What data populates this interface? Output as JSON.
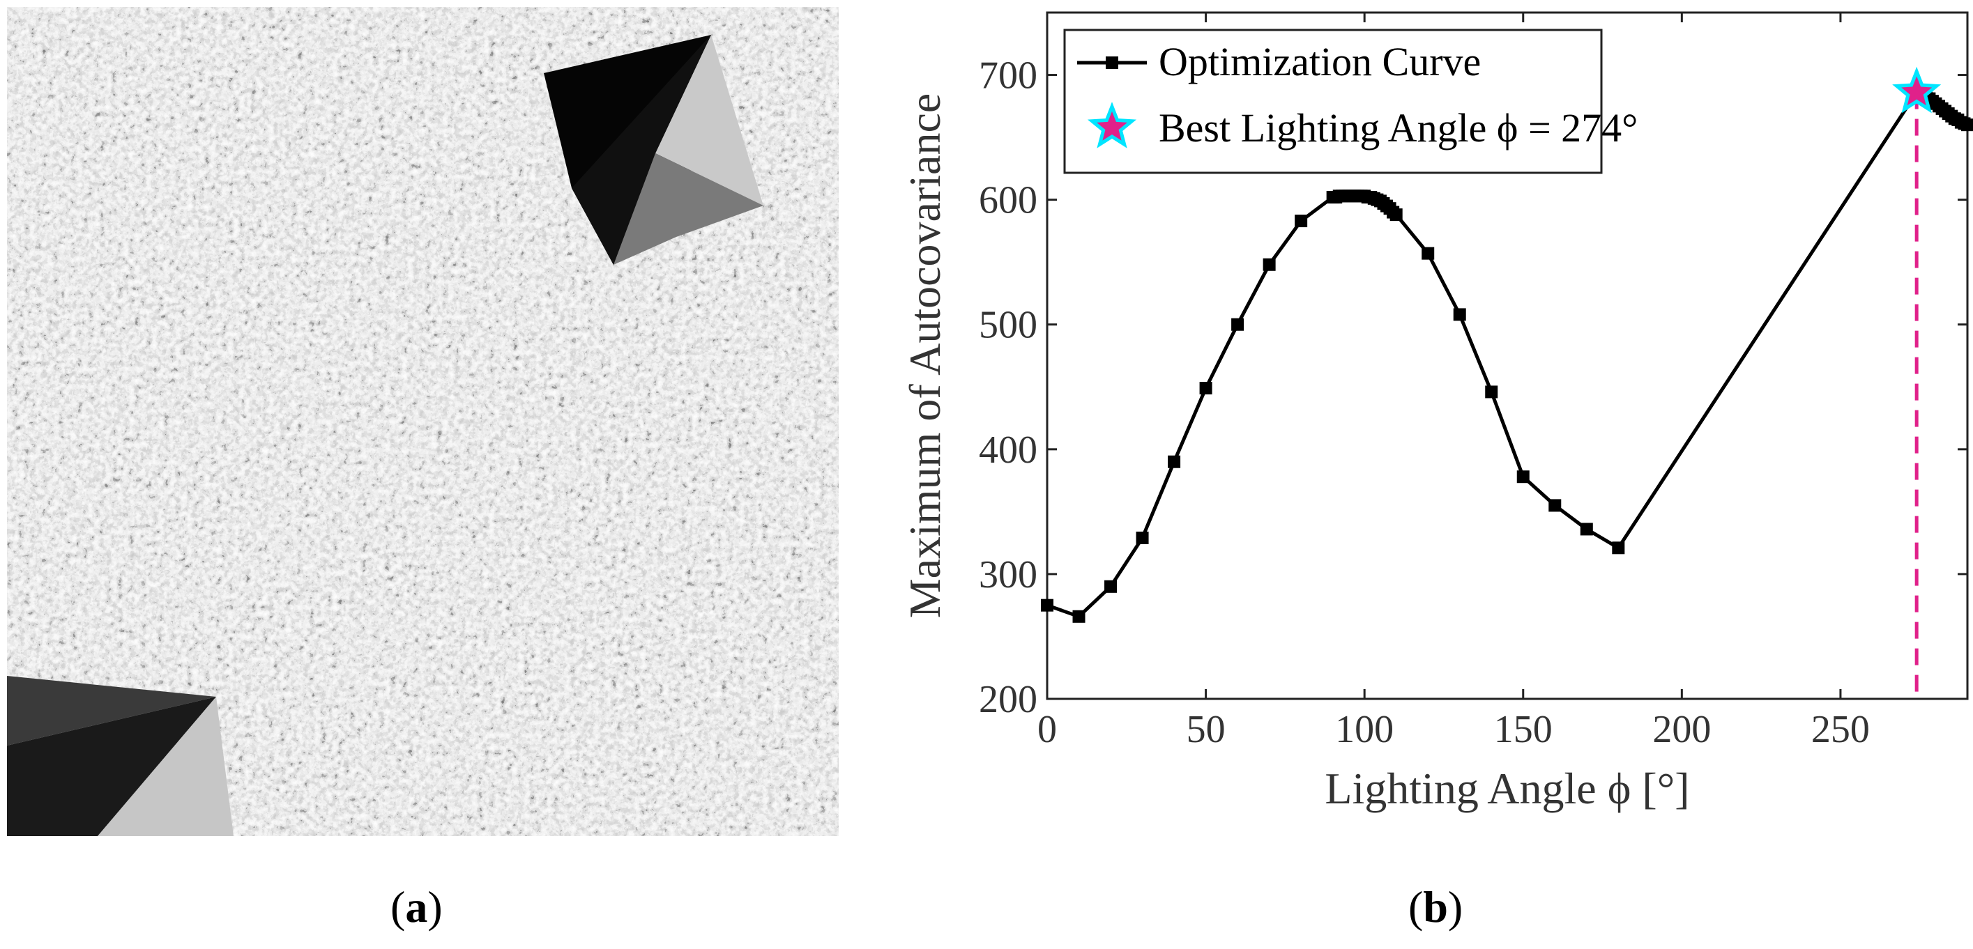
{
  "panel_a": {
    "description_icon": "textured-surface-with-pyramids"
  },
  "captions": {
    "a": "a",
    "b": "b"
  },
  "chart_data": {
    "type": "line",
    "xlabel": "Lighting Angle ϕ [°]",
    "ylabel": "Maximum of Autocovariance",
    "xlim": [
      0,
      290
    ],
    "ylim": [
      200,
      750
    ],
    "xticks": [
      0,
      50,
      100,
      150,
      200,
      250
    ],
    "yticks": [
      200,
      300,
      400,
      500,
      600,
      700
    ],
    "grid": false,
    "legend_position": "top-left",
    "series": [
      {
        "name": "Optimization Curve",
        "color": "#000000",
        "marker": "square",
        "x": [
          0,
          10,
          20,
          30,
          40,
          50,
          60,
          70,
          80,
          90,
          91,
          92,
          93,
          94,
          95,
          96,
          97,
          98,
          99,
          100,
          101,
          102,
          103,
          104,
          105,
          106,
          107,
          108,
          109,
          110,
          120,
          130,
          140,
          150,
          160,
          170,
          180,
          274,
          275,
          276,
          277,
          278,
          279,
          280,
          281,
          282,
          283,
          284,
          285,
          286,
          287,
          288,
          289,
          290
        ],
        "y": [
          275,
          266,
          290,
          329,
          390,
          449,
          500,
          548,
          583,
          602,
          602,
          603,
          603,
          603,
          603,
          603,
          603,
          603,
          603,
          603,
          602,
          602,
          601,
          600,
          599,
          597,
          595,
          593,
          590,
          588,
          557,
          508,
          446,
          378,
          355,
          336,
          321,
          686,
          685,
          684,
          682,
          681,
          679,
          677,
          675,
          673,
          671,
          669,
          667,
          665,
          664,
          662,
          661,
          660
        ]
      }
    ],
    "annotations": [
      {
        "name": "Best Lighting Angle ϕ = 274°",
        "type": "star",
        "x": 274,
        "y": 686,
        "fill": "#e0218a",
        "edge": "#00e5ff",
        "vline_color": "#e0218a",
        "vline_style": "dashed"
      }
    ],
    "legend": [
      "Optimization Curve",
      "Best Lighting Angle ϕ = 274°"
    ]
  }
}
